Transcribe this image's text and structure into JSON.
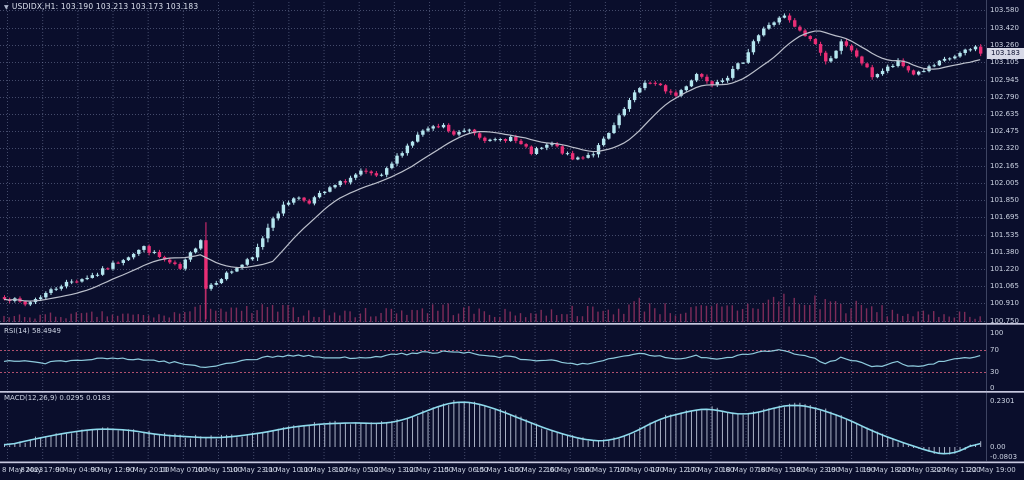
{
  "window": {
    "symbol_marker": "▼",
    "title": "USDIDX,H1: 103.190 103.213 103.173 103.183"
  },
  "panels": {
    "rsi": {
      "label": "RSI(14) 58.4949",
      "scale_labels": [
        "100",
        "70",
        "30",
        "0"
      ]
    },
    "macd": {
      "label": "MACD(12,26,9) 0.0295 0.0183",
      "scale_labels": [
        "0.2301",
        "0.00",
        "-0.0803"
      ]
    }
  },
  "price_axis": {
    "labels": [
      "103.580",
      "103.420",
      "103.260",
      "103.105",
      "102.945",
      "102.790",
      "102.635",
      "102.475",
      "102.320",
      "102.165",
      "102.005",
      "101.850",
      "101.695",
      "101.535",
      "101.380",
      "101.220",
      "101.065",
      "100.910",
      "100.750"
    ],
    "current": "103.183"
  },
  "time_axis": {
    "labels": [
      "8 May 2023",
      "8 May 17:00",
      "9 May 04:00",
      "9 May 12:00",
      "9 May 20:00",
      "10 May 07:00",
      "10 May 15:00",
      "10 May 23:00",
      "11 May 10:00",
      "11 May 18:00",
      "12 May 05:00",
      "12 May 13:00",
      "12 May 21:00",
      "15 May 06:00",
      "15 May 14:00",
      "15 May 22:00",
      "16 May 09:00",
      "16 May 17:00",
      "17 May 04:00",
      "17 May 12:00",
      "17 May 20:00",
      "18 May 07:00",
      "18 May 15:00",
      "18 May 23:00",
      "19 May 10:00",
      "19 May 18:00",
      "22 May 03:00",
      "22 May 11:00",
      "22 May 19:00"
    ]
  },
  "colors": {
    "background": "#0a0e2c",
    "bull": "#b5e6ef",
    "bear": "#ea2e75",
    "ma_line": "#bcc0cc",
    "volume": "#7e2c59",
    "rsi_line": "#8ecbdd",
    "rsi_levels": "#b0506e",
    "macd_hist": "#aab2c6",
    "macd_line": "#8edaec",
    "separator": "#c7c8df",
    "grid": "rgba(150,160,195,0.42)",
    "text": "#ccd3e3",
    "tag_bg": "#d7d9e7",
    "tag_text": "#0b0f2e"
  },
  "chart_data": {
    "type": "candlestick",
    "symbol": "USDIDX",
    "timeframe": "H1",
    "ohlc_last": {
      "open": 103.19,
      "high": 103.213,
      "low": 103.173,
      "close": 103.183
    },
    "bars": 190,
    "price_range": [
      100.75,
      103.58
    ],
    "ma_period": 14,
    "noise_seed": 7,
    "close_path_anchors": [
      [
        0,
        100.97
      ],
      [
        4,
        100.9
      ],
      [
        11,
        101.08
      ],
      [
        18,
        101.18
      ],
      [
        23,
        101.32
      ],
      [
        27,
        101.42
      ],
      [
        30,
        101.33
      ],
      [
        34,
        101.22
      ],
      [
        38,
        101.5
      ],
      [
        39,
        101.05
      ],
      [
        42,
        101.15
      ],
      [
        48,
        101.32
      ],
      [
        52,
        101.7
      ],
      [
        56,
        101.88
      ],
      [
        59,
        101.84
      ],
      [
        64,
        101.98
      ],
      [
        69,
        102.1
      ],
      [
        73,
        102.06
      ],
      [
        77,
        102.3
      ],
      [
        81,
        102.48
      ],
      [
        85,
        102.52
      ],
      [
        87,
        102.44
      ],
      [
        90,
        102.5
      ],
      [
        94,
        102.38
      ],
      [
        98,
        102.42
      ],
      [
        102,
        102.28
      ],
      [
        106,
        102.36
      ],
      [
        110,
        102.22
      ],
      [
        114,
        102.28
      ],
      [
        117,
        102.45
      ],
      [
        121,
        102.75
      ],
      [
        124,
        102.93
      ],
      [
        127,
        102.88
      ],
      [
        130,
        102.8
      ],
      [
        134,
        103.0
      ],
      [
        137,
        102.92
      ],
      [
        140,
        102.98
      ],
      [
        143,
        103.12
      ],
      [
        145,
        103.3
      ],
      [
        148,
        103.45
      ],
      [
        151,
        103.52
      ],
      [
        154,
        103.38
      ],
      [
        157,
        103.28
      ],
      [
        159,
        103.1
      ],
      [
        162,
        103.28
      ],
      [
        165,
        103.16
      ],
      [
        168,
        102.98
      ],
      [
        171,
        103.05
      ],
      [
        173,
        103.1
      ],
      [
        176,
        103.0
      ],
      [
        179,
        103.05
      ],
      [
        182,
        103.12
      ],
      [
        185,
        103.18
      ],
      [
        188,
        103.24
      ],
      [
        189,
        103.183
      ]
    ],
    "volume_envelope": [
      [
        0,
        7
      ],
      [
        10,
        9
      ],
      [
        20,
        10
      ],
      [
        30,
        8
      ],
      [
        38,
        16
      ],
      [
        39,
        42
      ],
      [
        41,
        20
      ],
      [
        44,
        14
      ],
      [
        52,
        18
      ],
      [
        60,
        12
      ],
      [
        68,
        12
      ],
      [
        77,
        16
      ],
      [
        85,
        20
      ],
      [
        94,
        12
      ],
      [
        102,
        12
      ],
      [
        110,
        16
      ],
      [
        117,
        14
      ],
      [
        121,
        22
      ],
      [
        124,
        26
      ],
      [
        130,
        14
      ],
      [
        137,
        18
      ],
      [
        143,
        20
      ],
      [
        148,
        28
      ],
      [
        151,
        32
      ],
      [
        154,
        24
      ],
      [
        159,
        30
      ],
      [
        162,
        22
      ],
      [
        168,
        18
      ],
      [
        173,
        12
      ],
      [
        179,
        10
      ],
      [
        185,
        12
      ],
      [
        189,
        8
      ]
    ],
    "rsi": {
      "period": 14,
      "last": 58.4949,
      "range": [
        0,
        100
      ],
      "levels": [
        70,
        30
      ],
      "anchors": [
        [
          0,
          50
        ],
        [
          8,
          47
        ],
        [
          15,
          52
        ],
        [
          23,
          55
        ],
        [
          30,
          50
        ],
        [
          34,
          46
        ],
        [
          39,
          38
        ],
        [
          44,
          48
        ],
        [
          52,
          58
        ],
        [
          56,
          60
        ],
        [
          64,
          55
        ],
        [
          70,
          57
        ],
        [
          77,
          62
        ],
        [
          81,
          65
        ],
        [
          85,
          66
        ],
        [
          90,
          64
        ],
        [
          94,
          58
        ],
        [
          98,
          57
        ],
        [
          102,
          50
        ],
        [
          106,
          52
        ],
        [
          110,
          44
        ],
        [
          114,
          47
        ],
        [
          117,
          52
        ],
        [
          121,
          60
        ],
        [
          124,
          63
        ],
        [
          127,
          58
        ],
        [
          130,
          52
        ],
        [
          134,
          60
        ],
        [
          137,
          54
        ],
        [
          140,
          56
        ],
        [
          143,
          62
        ],
        [
          148,
          68
        ],
        [
          151,
          70
        ],
        [
          154,
          60
        ],
        [
          157,
          55
        ],
        [
          159,
          45
        ],
        [
          162,
          55
        ],
        [
          165,
          50
        ],
        [
          168,
          38
        ],
        [
          171,
          44
        ],
        [
          173,
          48
        ],
        [
          176,
          40
        ],
        [
          179,
          44
        ],
        [
          182,
          50
        ],
        [
          185,
          54
        ],
        [
          189,
          58.49
        ]
      ]
    },
    "macd": {
      "fast": 12,
      "slow": 26,
      "signal": 9,
      "range": [
        -0.0803,
        0.2301
      ],
      "anchors": [
        [
          0,
          0.005
        ],
        [
          6,
          0.04
        ],
        [
          12,
          0.07
        ],
        [
          18,
          0.09
        ],
        [
          24,
          0.085
        ],
        [
          30,
          0.06
        ],
        [
          36,
          0.05
        ],
        [
          40,
          0.045
        ],
        [
          44,
          0.05
        ],
        [
          50,
          0.07
        ],
        [
          56,
          0.1
        ],
        [
          62,
          0.115
        ],
        [
          68,
          0.12
        ],
        [
          73,
          0.115
        ],
        [
          77,
          0.13
        ],
        [
          81,
          0.17
        ],
        [
          85,
          0.21
        ],
        [
          88,
          0.225
        ],
        [
          91,
          0.22
        ],
        [
          95,
          0.19
        ],
        [
          100,
          0.14
        ],
        [
          105,
          0.09
        ],
        [
          110,
          0.05
        ],
        [
          114,
          0.03
        ],
        [
          117,
          0.03
        ],
        [
          121,
          0.06
        ],
        [
          124,
          0.1
        ],
        [
          127,
          0.14
        ],
        [
          130,
          0.16
        ],
        [
          134,
          0.185
        ],
        [
          137,
          0.19
        ],
        [
          140,
          0.17
        ],
        [
          143,
          0.16
        ],
        [
          146,
          0.17
        ],
        [
          150,
          0.2
        ],
        [
          153,
          0.21
        ],
        [
          156,
          0.2
        ],
        [
          160,
          0.17
        ],
        [
          164,
          0.13
        ],
        [
          168,
          0.08
        ],
        [
          172,
          0.04
        ],
        [
          176,
          0.005
        ],
        [
          180,
          -0.028
        ],
        [
          183,
          -0.04
        ],
        [
          186,
          -0.01
        ],
        [
          189,
          0.03
        ]
      ]
    }
  }
}
